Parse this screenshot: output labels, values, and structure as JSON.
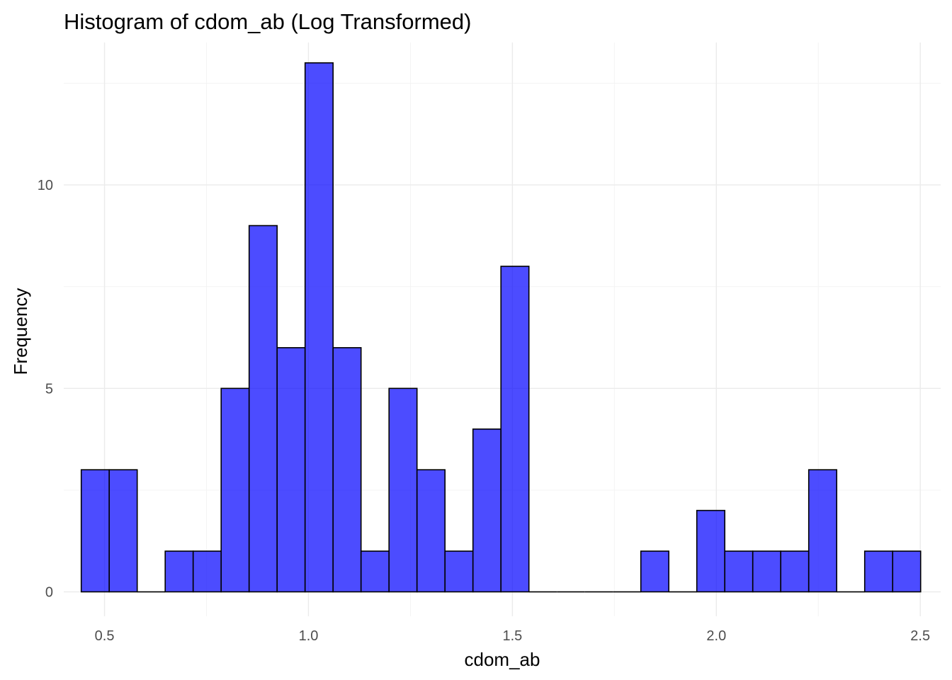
{
  "chart_data": {
    "type": "bar",
    "title": "Histogram of cdom_ab (Log Transformed)",
    "xlabel": "cdom_ab",
    "ylabel": "Frequency",
    "xlim": [
      0.4,
      2.55
    ],
    "ylim": [
      -0.6,
      13.5
    ],
    "x_ticks": [
      0.5,
      1.0,
      1.5,
      2.0,
      2.5
    ],
    "x_tick_labels": [
      "0.5",
      "1.0",
      "1.5",
      "2.0",
      "2.5"
    ],
    "y_ticks": [
      0,
      5,
      10
    ],
    "y_tick_labels": [
      "0",
      "5",
      "10"
    ],
    "grid": true,
    "bin_start": 0.4429,
    "bin_width": 0.0686,
    "counts": [
      3,
      3,
      0,
      1,
      1,
      5,
      9,
      6,
      13,
      6,
      1,
      5,
      3,
      1,
      4,
      8,
      0,
      0,
      0,
      0,
      1,
      0,
      2,
      1,
      1,
      1,
      3,
      0,
      1,
      1
    ],
    "bar_fill": "#0000ff",
    "bar_opacity": 0.7,
    "bar_outline": "#000000"
  }
}
